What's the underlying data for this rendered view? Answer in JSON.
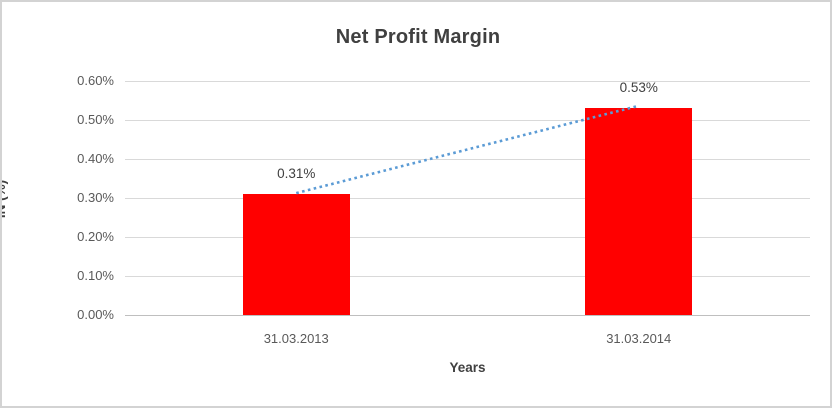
{
  "chart_data": {
    "type": "bar",
    "title": "Net Profit Margin",
    "xlabel": "Years",
    "ylabel": "IN (%)",
    "categories": [
      "31.03.2013",
      "31.03.2014"
    ],
    "series": [
      {
        "name": "Net Profit Margin",
        "values": [
          0.31,
          0.53
        ]
      }
    ],
    "data_labels": [
      "0.31%",
      "0.53%"
    ],
    "ytick_labels": [
      "0.00%",
      "0.10%",
      "0.20%",
      "0.30%",
      "0.40%",
      "0.50%",
      "0.60%"
    ],
    "ylim": [
      0,
      0.6
    ],
    "grid": "horizontal",
    "legend": "none",
    "trendline": true,
    "colors": {
      "bar": "#ff0000",
      "trendline": "#5b9bd5",
      "gridline": "#d9d9d9",
      "axis_line": "#bfbfbf",
      "tick_text": "#595959",
      "title_text": "#404040",
      "border": "#d3d3d3"
    }
  }
}
